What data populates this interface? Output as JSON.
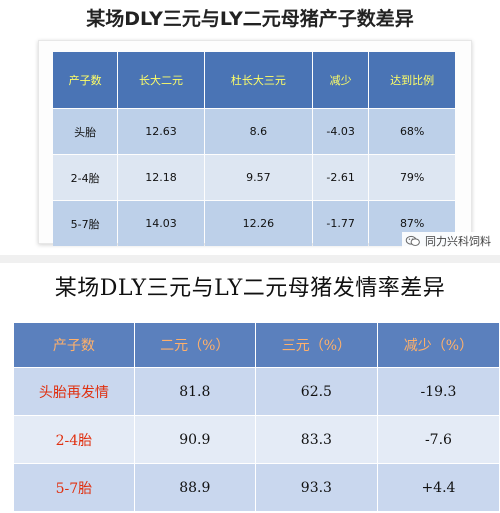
{
  "top": {
    "title": "某场DLY三元与LY二元母猪产子数差异",
    "headers": [
      "产子数",
      "长大二元",
      "杜长大三元",
      "减少",
      "达到比例"
    ],
    "rows": [
      [
        "头胎",
        "12.63",
        "8.6",
        "-4.03",
        "68%"
      ],
      [
        "2-4胎",
        "12.18",
        "9.57",
        "-2.61",
        "79%"
      ],
      [
        "5-7胎",
        "14.03",
        "12.26",
        "-1.77",
        "87%"
      ]
    ]
  },
  "watermark": {
    "text": "同力兴科饲料",
    "icon": "wechat-icon"
  },
  "bottom": {
    "title": "某场DLY三元与LY二元母猪发情率差异",
    "headers": [
      "产子数",
      "二元（%）",
      "三元（%）",
      "减少（%）"
    ],
    "rows": [
      [
        "头胎再发情",
        "81.8",
        "62.5",
        "-19.3"
      ],
      [
        "2-4胎",
        "90.9",
        "83.3",
        "-7.6"
      ],
      [
        "5-7胎",
        "88.9",
        "93.3",
        "+4.4"
      ]
    ]
  },
  "colors": {
    "header_blue": "#4a74b5",
    "header_text_top": "#ffff66",
    "header_text_bottom": "#ffb06a",
    "row_label_red": "#e03010"
  }
}
